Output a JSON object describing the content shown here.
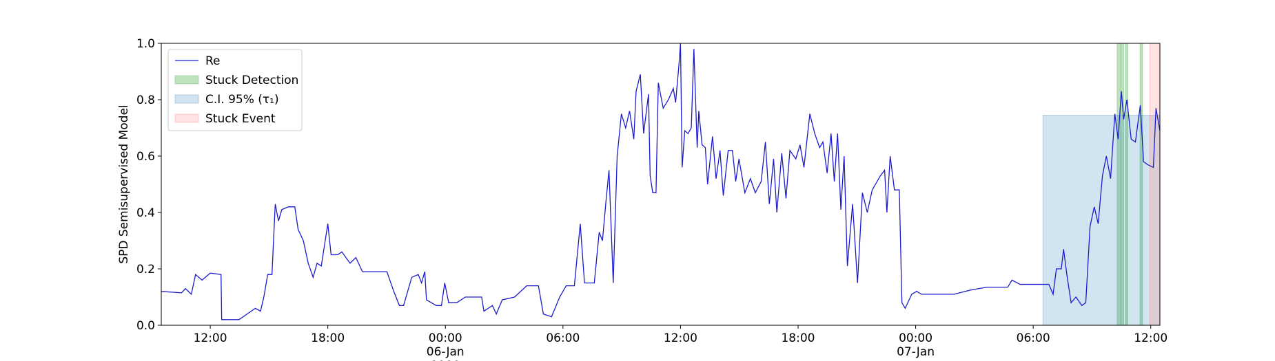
{
  "chart_data": {
    "type": "line",
    "ylabel": "SPD Semisupervised Model",
    "x": [
      "1900-01-05 09:30",
      "1900-01-05 10:32",
      "1900-01-05 10:44",
      "1900-01-05 11:02",
      "1900-01-05 11:15",
      "1900-01-05 11:35",
      "1900-01-05 12:00",
      "1900-01-05 12:33",
      "1900-01-05 12:35",
      "1900-01-05 13:28",
      "1900-01-05 13:53",
      "1900-01-05 14:18",
      "1900-01-05 14:34",
      "1900-01-05 14:44",
      "1900-01-05 14:56",
      "1900-01-05 15:09",
      "1900-01-05 15:19",
      "1900-01-05 15:29",
      "1900-01-05 15:39",
      "1900-01-05 15:59",
      "1900-01-05 16:19",
      "1900-01-05 16:29",
      "1900-01-05 16:45",
      "1900-01-05 17:00",
      "1900-01-05 17:15",
      "1900-01-05 17:27",
      "1900-01-05 17:40",
      "1900-01-05 18:00",
      "1900-01-05 18:10",
      "1900-01-05 18:30",
      "1900-01-05 18:43",
      "1900-01-05 19:08",
      "1900-01-05 19:26",
      "1900-01-05 19:46",
      "1900-01-05 21:01",
      "1900-01-05 21:22",
      "1900-01-05 21:39",
      "1900-01-05 21:52",
      "1900-01-05 22:02",
      "1900-01-05 22:17",
      "1900-01-05 22:37",
      "1900-01-05 22:47",
      "1900-01-05 22:57",
      "1900-01-05 23:02",
      "1900-01-05 23:32",
      "1900-01-05 23:48",
      "1900-01-05 23:58",
      "1900-01-06 00:10",
      "1900-01-06 00:35",
      "1900-01-06 01:01",
      "1900-01-06 01:51",
      "1900-01-06 01:58",
      "1900-01-06 02:24",
      "1900-01-06 02:36",
      "1900-01-06 02:54",
      "1900-01-06 03:32",
      "1900-01-06 04:09",
      "1900-01-06 04:45",
      "1900-01-06 05:00",
      "1900-01-06 05:25",
      "1900-01-06 05:50",
      "1900-01-06 06:10",
      "1900-01-06 06:35",
      "1900-01-06 06:53",
      "1900-01-06 07:06",
      "1900-01-06 07:36",
      "1900-01-06 07:51",
      "1900-01-06 08:01",
      "1900-01-06 08:11",
      "1900-01-06 08:21",
      "1900-01-06 08:34",
      "1900-01-06 08:46",
      "1900-01-06 08:59",
      "1900-01-06 09:12",
      "1900-01-06 09:24",
      "1900-01-06 09:37",
      "1900-01-06 09:44",
      "1900-01-06 09:57",
      "1900-01-06 10:07",
      "1900-01-06 10:22",
      "1900-01-06 10:27",
      "1900-01-06 10:35",
      "1900-01-06 10:45",
      "1900-01-06 10:52",
      "1900-01-06 11:07",
      "1900-01-06 11:23",
      "1900-01-06 11:38",
      "1900-01-06 11:45",
      "1900-01-06 11:55",
      "1900-01-06 12:00",
      "1900-01-06 12:05",
      "1900-01-06 12:13",
      "1900-01-06 12:23",
      "1900-01-06 12:33",
      "1900-01-06 12:41",
      "1900-01-06 12:51",
      "1900-01-06 12:56",
      "1900-01-06 13:06",
      "1900-01-06 13:16",
      "1900-01-06 13:23",
      "1900-01-06 13:38",
      "1900-01-06 13:49",
      "1900-01-06 14:01",
      "1900-01-06 14:11",
      "1900-01-06 14:26",
      "1900-01-06 14:39",
      "1900-01-06 14:49",
      "1900-01-06 14:59",
      "1900-01-06 15:17",
      "1900-01-06 15:34",
      "1900-01-06 15:49",
      "1900-01-06 16:07",
      "1900-01-06 16:20",
      "1900-01-06 16:32",
      "1900-01-06 16:45",
      "1900-01-06 16:55",
      "1900-01-06 17:10",
      "1900-01-06 17:23",
      "1900-01-06 17:35",
      "1900-01-06 17:53",
      "1900-01-06 18:06",
      "1900-01-06 18:18",
      "1900-01-06 18:36",
      "1900-01-06 18:51",
      "1900-01-06 19:06",
      "1900-01-06 19:16",
      "1900-01-06 19:29",
      "1900-01-06 19:41",
      "1900-01-06 19:51",
      "1900-01-06 20:01",
      "1900-01-06 20:11",
      "1900-01-06 20:21",
      "1900-01-06 20:31",
      "1900-01-06 20:47",
      "1900-01-06 21:02",
      "1900-01-06 21:17",
      "1900-01-06 21:32",
      "1900-01-06 21:47",
      "1900-01-06 22:12",
      "1900-01-06 22:25",
      "1900-01-06 22:32",
      "1900-01-06 22:42",
      "1900-01-06 22:55",
      "1900-01-06 23:10",
      "1900-01-06 23:18",
      "1900-01-06 23:28",
      "1900-01-06 23:48",
      "1900-01-07 00:03",
      "1900-01-07 00:18",
      "1900-01-07 01:58",
      "1900-01-07 02:49",
      "1900-01-07 03:39",
      "1900-01-07 04:42",
      "1900-01-07 04:55",
      "1900-01-07 05:20",
      "1900-01-07 06:48",
      "1900-01-07 07:01",
      "1900-01-07 07:11",
      "1900-01-07 07:26",
      "1900-01-07 07:33",
      "1900-01-07 07:43",
      "1900-01-07 07:56",
      "1900-01-07 08:11",
      "1900-01-07 08:29",
      "1900-01-07 08:41",
      "1900-01-07 08:54",
      "1900-01-07 09:07",
      "1900-01-07 09:19",
      "1900-01-07 09:32",
      "1900-01-07 09:44",
      "1900-01-07 09:57",
      "1900-01-07 10:10",
      "1900-01-07 10:20",
      "1900-01-07 10:30",
      "1900-01-07 10:37",
      "1900-01-07 10:47",
      "1900-01-07 11:00",
      "1900-01-07 11:13",
      "1900-01-07 11:28",
      "1900-01-07 11:38",
      "1900-01-07 11:50",
      "1900-01-07 12:08",
      "1900-01-07 12:16",
      "1900-01-07 12:28"
    ],
    "series": [
      {
        "name": "Re",
        "color": "#1a1acc",
        "values": [
          0.12,
          0.115,
          0.13,
          0.11,
          0.18,
          0.16,
          0.185,
          0.18,
          0.02,
          0.02,
          0.04,
          0.06,
          0.05,
          0.1,
          0.18,
          0.18,
          0.43,
          0.37,
          0.41,
          0.42,
          0.42,
          0.34,
          0.3,
          0.22,
          0.17,
          0.22,
          0.21,
          0.36,
          0.25,
          0.25,
          0.26,
          0.22,
          0.24,
          0.19,
          0.19,
          0.12,
          0.07,
          0.07,
          0.11,
          0.17,
          0.18,
          0.15,
          0.19,
          0.09,
          0.07,
          0.07,
          0.15,
          0.08,
          0.08,
          0.1,
          0.1,
          0.05,
          0.07,
          0.04,
          0.09,
          0.1,
          0.14,
          0.14,
          0.04,
          0.03,
          0.1,
          0.14,
          0.14,
          0.36,
          0.15,
          0.15,
          0.33,
          0.3,
          0.43,
          0.55,
          0.15,
          0.6,
          0.75,
          0.7,
          0.76,
          0.66,
          0.83,
          0.89,
          0.68,
          0.82,
          0.53,
          0.47,
          0.47,
          0.86,
          0.77,
          0.8,
          0.84,
          0.79,
          0.92,
          1.0,
          0.56,
          0.69,
          0.68,
          0.7,
          0.98,
          0.63,
          0.76,
          0.64,
          0.63,
          0.5,
          0.67,
          0.52,
          0.62,
          0.46,
          0.62,
          0.62,
          0.51,
          0.59,
          0.47,
          0.52,
          0.47,
          0.51,
          0.65,
          0.43,
          0.59,
          0.4,
          0.61,
          0.45,
          0.62,
          0.59,
          0.64,
          0.56,
          0.75,
          0.68,
          0.63,
          0.65,
          0.54,
          0.68,
          0.51,
          0.68,
          0.41,
          0.6,
          0.21,
          0.43,
          0.15,
          0.47,
          0.4,
          0.48,
          0.53,
          0.55,
          0.4,
          0.6,
          0.48,
          0.48,
          0.08,
          0.06,
          0.11,
          0.12,
          0.11,
          0.11,
          0.125,
          0.135,
          0.135,
          0.16,
          0.145,
          0.145,
          0.11,
          0.2,
          0.2,
          0.27,
          0.18,
          0.08,
          0.1,
          0.07,
          0.08,
          0.35,
          0.42,
          0.36,
          0.53,
          0.6,
          0.52,
          0.75,
          0.66,
          0.83,
          0.73,
          0.8,
          0.66,
          0.65,
          0.78,
          0.58,
          0.57,
          0.56,
          0.77,
          0.69
        ]
      }
    ],
    "spans": [
      {
        "name": "Stuck Detection",
        "color": "#2ca02c",
        "ranges": [
          [
            "1900-01-07 10:17",
            "1900-01-07 10:27"
          ],
          [
            "1900-01-07 10:29",
            "1900-01-07 10:37"
          ],
          [
            "1900-01-07 10:42",
            "1900-01-07 10:50"
          ],
          [
            "1900-01-07 11:27",
            "1900-01-07 11:35"
          ]
        ]
      },
      {
        "name": "C.I. 95% (τ₁)",
        "color": "#1f77b4",
        "ranges": [
          [
            "1900-01-07 06:30",
            "1900-01-07 12:28"
          ]
        ],
        "top": 0.745
      },
      {
        "name": "Stuck Event",
        "color": "#ff6f6f",
        "ranges": [
          [
            "1900-01-07 11:57",
            "1900-01-07 12:28"
          ]
        ]
      }
    ],
    "xlim": [
      "1900-01-05 09:30",
      "1900-01-07 12:28"
    ],
    "xticks": [
      {
        "value": "1900-01-05 12:00",
        "label": "12:00"
      },
      {
        "value": "1900-01-05 18:00",
        "label": "18:00"
      },
      {
        "value": "1900-01-06 00:00",
        "label": "00:00\n06-Jan\n1900"
      },
      {
        "value": "1900-01-06 06:00",
        "label": "06:00"
      },
      {
        "value": "1900-01-06 12:00",
        "label": "12:00"
      },
      {
        "value": "1900-01-06 18:00",
        "label": "18:00"
      },
      {
        "value": "1900-01-07 00:00",
        "label": "00:00\n07-Jan"
      },
      {
        "value": "1900-01-07 06:00",
        "label": "06:00"
      },
      {
        "value": "1900-01-07 12:00",
        "label": "12:00"
      }
    ],
    "ylim": [
      0,
      1
    ],
    "yticks": [
      {
        "value": 0,
        "label": "0.0"
      },
      0.2,
      0.4,
      0.6,
      0.8,
      {
        "value": 1,
        "label": "1.0"
      }
    ],
    "legend": "upper left"
  }
}
